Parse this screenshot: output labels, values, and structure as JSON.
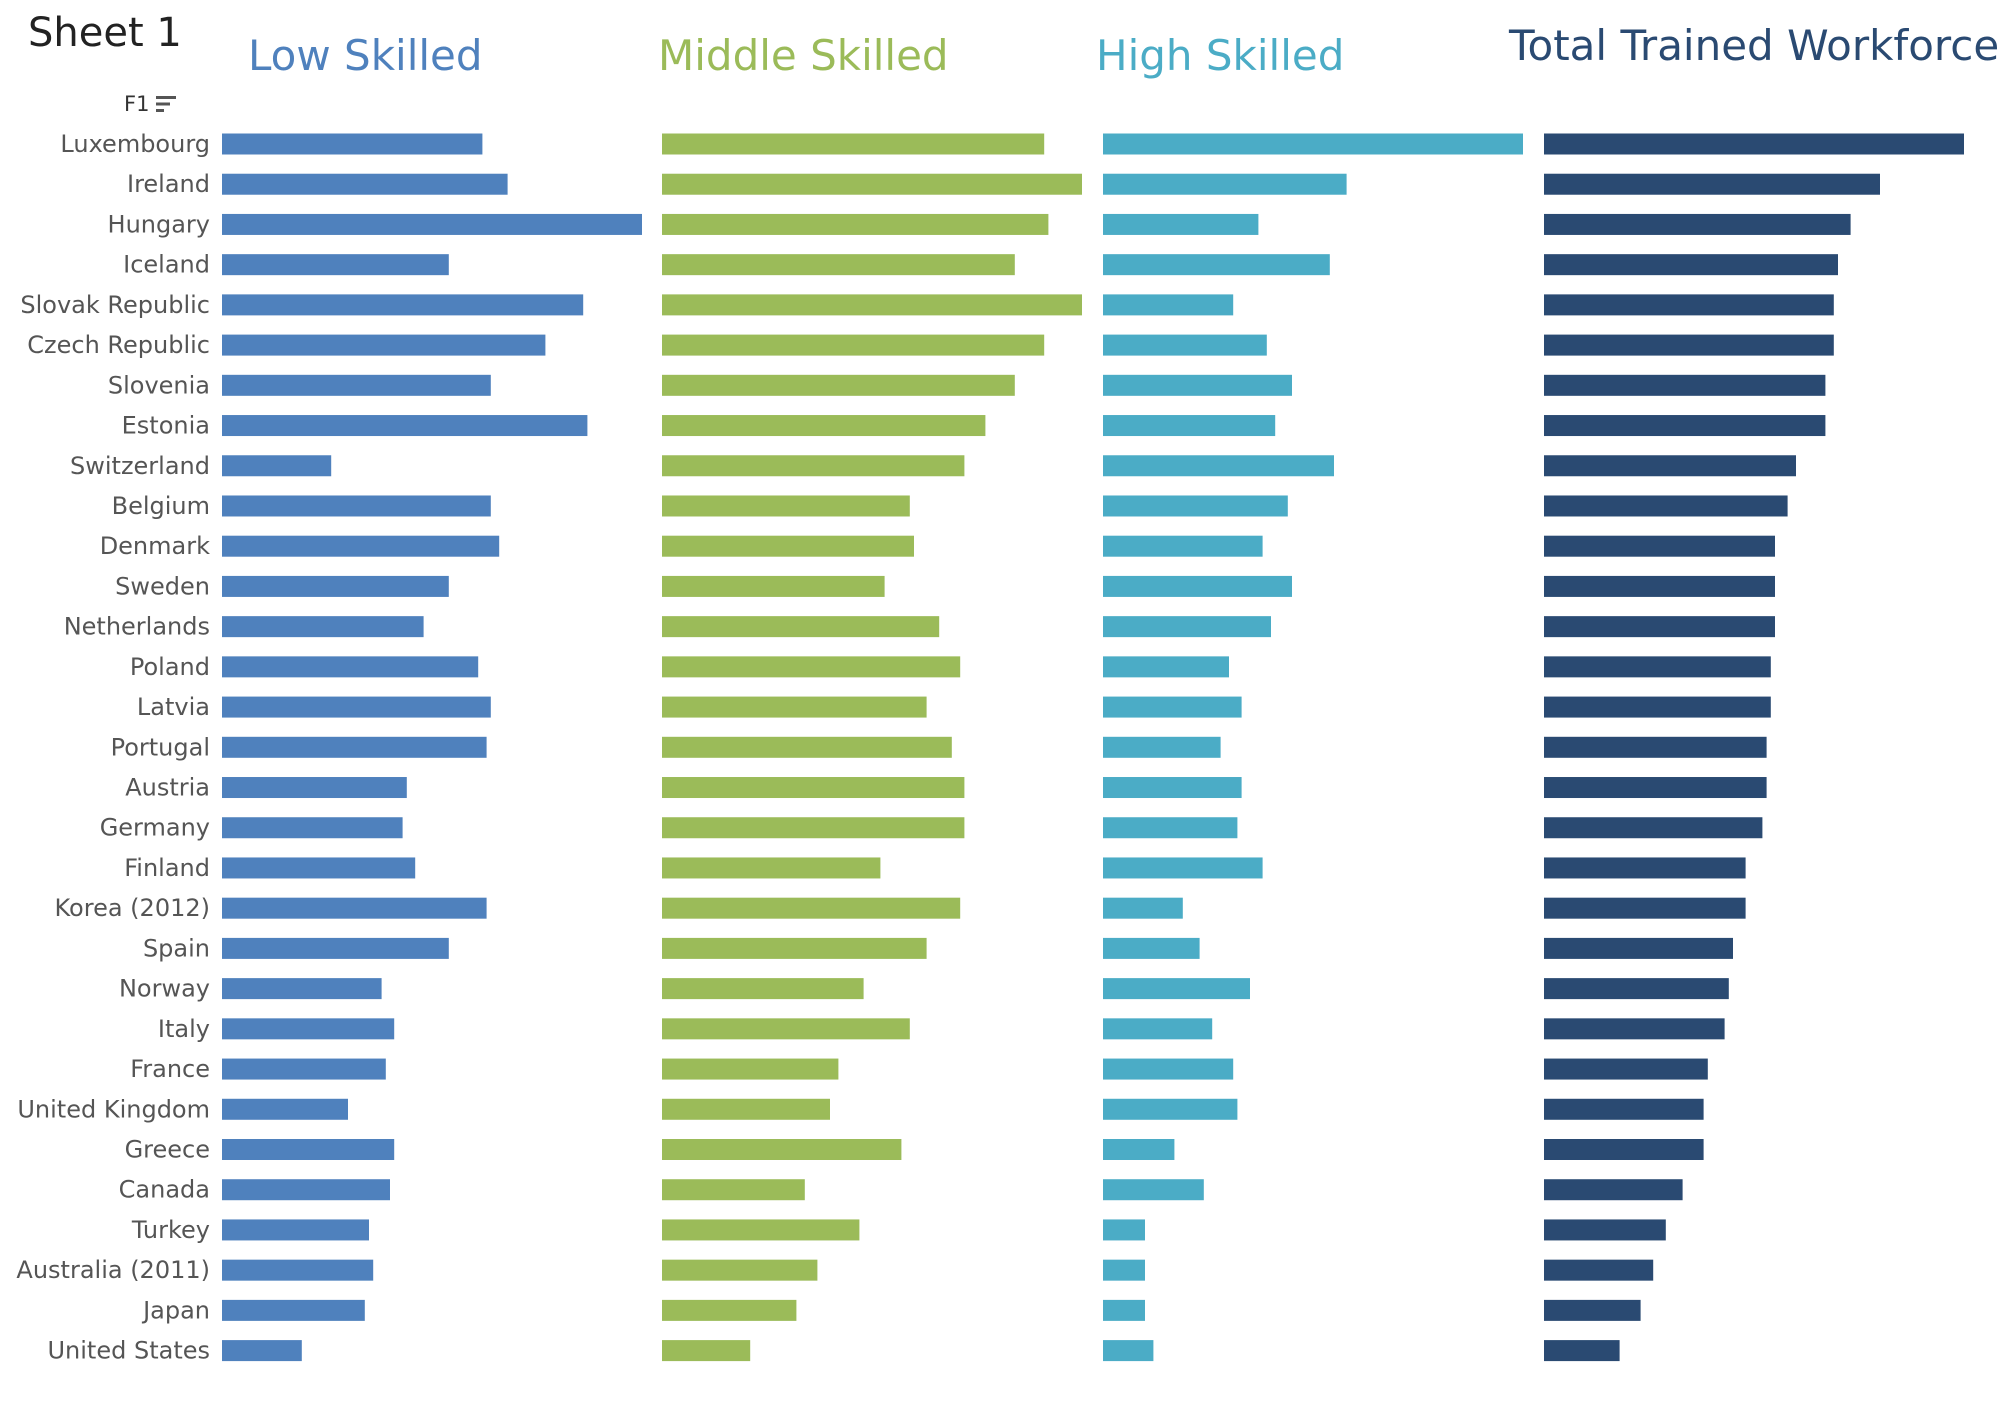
{
  "sheet_title": "Sheet 1",
  "field_label": "F1",
  "sort_icon": "sort-descending-icon",
  "chart_data": {
    "type": "bar",
    "orientation": "horizontal",
    "categories": [
      "Luxembourg",
      "Ireland",
      "Hungary",
      "Iceland",
      "Slovak Republic",
      "Czech Republic",
      "Slovenia",
      "Estonia",
      "Switzerland",
      "Belgium",
      "Denmark",
      "Sweden",
      "Netherlands",
      "Poland",
      "Latvia",
      "Portugal",
      "Austria",
      "Germany",
      "Finland",
      "Korea (2012)",
      "Spain",
      "Norway",
      "Italy",
      "France",
      "United Kingdom",
      "Greece",
      "Canada",
      "Turkey",
      "Australia (2011)",
      "Japan",
      "United States"
    ],
    "series": [
      {
        "name": "Low Skilled",
        "color": "#4f81bd",
        "values": [
          62,
          68,
          100,
          54,
          86,
          77,
          64,
          87,
          26,
          64,
          66,
          54,
          48,
          61,
          64,
          63,
          44,
          43,
          46,
          63,
          54,
          38,
          41,
          39,
          30,
          41,
          40,
          35,
          36,
          34,
          19
        ]
      },
      {
        "name": "Middle Skilled",
        "color": "#9bbb59",
        "values": [
          91,
          100,
          92,
          84,
          100,
          91,
          84,
          77,
          72,
          59,
          60,
          53,
          66,
          71,
          63,
          69,
          72,
          72,
          52,
          71,
          63,
          48,
          59,
          42,
          40,
          57,
          34,
          47,
          37,
          32,
          21
        ]
      },
      {
        "name": "High Skilled",
        "color": "#4bacc6",
        "values": [
          100,
          58,
          37,
          54,
          31,
          39,
          45,
          41,
          55,
          44,
          38,
          45,
          40,
          30,
          33,
          28,
          33,
          32,
          38,
          19,
          23,
          35,
          26,
          31,
          32,
          17,
          24,
          10,
          10,
          10,
          12
        ]
      },
      {
        "name": "Total Trained Workforce",
        "color": "#2a4a72",
        "values": [
          100,
          80,
          73,
          70,
          69,
          69,
          67,
          67,
          60,
          58,
          55,
          55,
          55,
          54,
          54,
          53,
          53,
          52,
          48,
          48,
          45,
          44,
          43,
          39,
          38,
          38,
          33,
          29,
          26,
          23,
          18
        ]
      }
    ]
  }
}
